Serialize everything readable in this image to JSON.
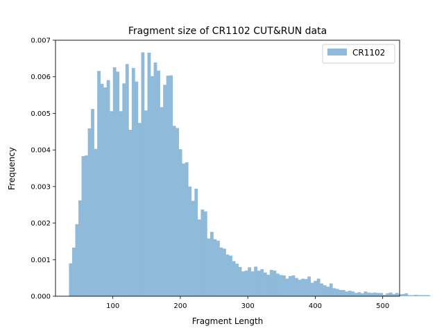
{
  "chart_data": {
    "type": "bar",
    "subtype": "histogram",
    "title": "Fragment size of CR1102 CUT&RUN data",
    "xlabel": "Fragment Length",
    "ylabel": "Frequency",
    "xlim": [
      15,
      525
    ],
    "ylim": [
      0,
      0.007
    ],
    "xticks": [
      100,
      200,
      300,
      400,
      500
    ],
    "xtick_labels": [
      "100",
      "200",
      "300",
      "400",
      "500"
    ],
    "yticks": [
      0,
      0.001,
      0.002,
      0.003,
      0.004,
      0.005,
      0.006,
      0.007
    ],
    "ytick_labels": [
      "0.000",
      "0.001",
      "0.002",
      "0.003",
      "0.004",
      "0.005",
      "0.006",
      "0.007"
    ],
    "grid": false,
    "legend_position": "top-right",
    "bar_color": "#8fbad9",
    "series": [
      {
        "name": "CR1102",
        "bin_start": 35,
        "bin_width": 4.65,
        "values": [
          0.0009,
          0.00133,
          0.00197,
          0.00262,
          0.00383,
          0.00385,
          0.00459,
          0.00512,
          0.00403,
          0.00616,
          0.00581,
          0.00571,
          0.00591,
          0.00506,
          0.00626,
          0.00614,
          0.00506,
          0.00582,
          0.00635,
          0.00455,
          0.00624,
          0.00587,
          0.00474,
          0.00667,
          0.00508,
          0.00666,
          0.00602,
          0.00639,
          0.00617,
          0.00517,
          0.00578,
          0.00603,
          0.00604,
          0.00466,
          0.0046,
          0.00402,
          0.00363,
          0.00366,
          0.003,
          0.00261,
          0.00294,
          0.0021,
          0.00237,
          0.00232,
          0.00158,
          0.00176,
          0.00156,
          0.00152,
          0.00133,
          0.0013,
          0.00114,
          0.00111,
          0.00096,
          0.00089,
          0.0008,
          0.00068,
          0.0007,
          0.00079,
          0.00068,
          0.00081,
          0.0007,
          0.00074,
          0.00065,
          0.00059,
          0.00072,
          0.0007,
          0.00062,
          0.00058,
          0.00057,
          0.00048,
          0.00055,
          0.00057,
          0.0005,
          0.00045,
          0.00048,
          0.00047,
          0.00054,
          0.00037,
          0.00042,
          0.00048,
          0.00035,
          0.0003,
          0.00026,
          0.00035,
          0.00022,
          0.0002,
          0.00017,
          0.00017,
          0.00013,
          0.00015,
          0.00013,
          9e-05,
          0.00011,
          8e-05,
          0.00013,
          0.0001,
          9e-05,
          0.0001,
          9e-05,
          9e-05,
          4e-05,
          8e-05,
          0.0001,
          6e-05,
          9e-05,
          5e-05,
          6e-05,
          8e-05,
          3e-05,
          3e-05,
          4e-05,
          3e-05,
          3e-05,
          3e-05,
          3e-05
        ]
      }
    ]
  }
}
